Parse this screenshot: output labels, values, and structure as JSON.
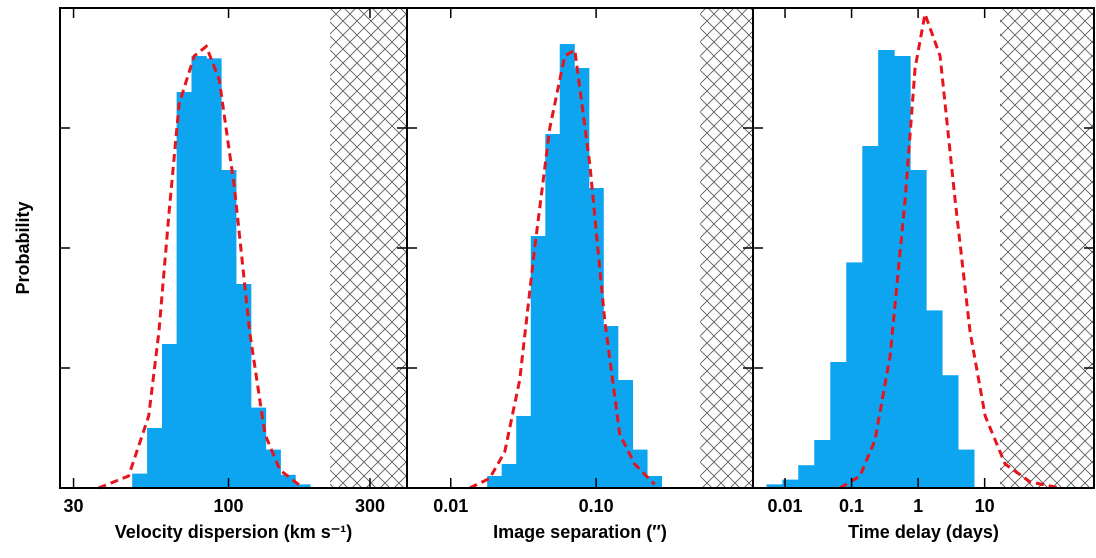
{
  "chart_data": [
    {
      "type": "histogram",
      "xlog": true,
      "ylabel": "Probability",
      "xlabel": "Velocity dispersion (km s⁻¹)",
      "xlim": [
        27,
        400
      ],
      "xticks": [
        30,
        100,
        300
      ],
      "ylim": [
        0,
        4
      ],
      "yticks": [
        0,
        1,
        2,
        3,
        4
      ],
      "color": "#0ea5f0",
      "bins": [
        47.3,
        53.1,
        59.6,
        66.8,
        75.0,
        84.1,
        94.4,
        105.9,
        118.9,
        133.4,
        149.6,
        167.9,
        188.4
      ],
      "values": [
        0.12,
        0.5,
        1.2,
        3.3,
        3.6,
        3.58,
        2.65,
        1.7,
        0.67,
        0.32,
        0.11,
        0.03
      ],
      "curve": {
        "color": "#e8141c",
        "x": [
          36.4,
          46.0,
          53.8,
          58.2,
          63.0,
          68.1,
          76.6,
          84.1,
          93.1,
          104.7,
          117.9,
          132.6,
          149.0,
          174.4
        ],
        "values": [
          0,
          0.1,
          0.6,
          1.3,
          2.3,
          3.2,
          3.6,
          3.68,
          3.4,
          2.5,
          1.3,
          0.45,
          0.15,
          0.02
        ]
      },
      "shaded_xrange": [
        220,
        400
      ]
    },
    {
      "type": "histogram",
      "xlog": true,
      "xlabel": "Image separation (″)",
      "xlim": [
        0.005,
        1.2
      ],
      "xticks": [
        0.01,
        {
          "value": 0.1,
          "label": "0.10"
        }
      ],
      "ylim": [
        0,
        4
      ],
      "yticks": [
        0,
        1,
        2,
        3,
        4
      ],
      "color": "#0ea5f0",
      "bins": [
        0.0178,
        0.0224,
        0.0282,
        0.0355,
        0.0447,
        0.0562,
        0.0708,
        0.0891,
        0.112,
        0.141,
        0.178,
        0.224,
        0.282
      ],
      "values": [
        0.1,
        0.2,
        0.6,
        2.1,
        2.95,
        3.7,
        3.5,
        2.5,
        1.35,
        0.9,
        0.32,
        0.1
      ],
      "curve": {
        "color": "#e8141c",
        "x": [
          0.0135,
          0.0185,
          0.0235,
          0.0298,
          0.0378,
          0.048,
          0.0608,
          0.0713,
          0.0904,
          0.1146,
          0.1452,
          0.184,
          0.253
        ],
        "values": [
          0,
          0.08,
          0.3,
          0.9,
          2.0,
          3.0,
          3.6,
          3.65,
          2.7,
          1.4,
          0.45,
          0.2,
          0.03
        ]
      },
      "shaded_xrange": [
        0.52,
        1.2
      ]
    },
    {
      "type": "histogram",
      "xlog": true,
      "xlabel": "Time delay (days)",
      "xlim": [
        0.0033,
        440
      ],
      "xticks": [
        0.01,
        0.1,
        1,
        10
      ],
      "ylim": [
        0,
        4
      ],
      "yticks": [
        0,
        1,
        2,
        3,
        4
      ],
      "color": "#0ea5f0",
      "bins": [
        0.00525,
        0.00912,
        0.0158,
        0.0275,
        0.0479,
        0.0832,
        0.145,
        0.251,
        0.437,
        0.759,
        1.32,
        2.29,
        3.98,
        6.92
      ],
      "values": [
        0.03,
        0.07,
        0.19,
        0.4,
        1.05,
        1.88,
        2.85,
        3.65,
        3.6,
        2.65,
        1.48,
        0.94,
        0.32
      ],
      "curve": {
        "color": "#e8141c",
        "x": [
          0.0671,
          0.134,
          0.225,
          0.379,
          0.638,
          0.901,
          1.27,
          2.14,
          3.6,
          6.05,
          10.2,
          20.3,
          48.3,
          136
        ],
        "values": [
          0,
          0.1,
          0.4,
          1.1,
          2.4,
          3.5,
          3.95,
          3.6,
          2.4,
          1.3,
          0.6,
          0.2,
          0.05,
          0
        ]
      },
      "shaded_xrange": [
        17,
        440
      ]
    }
  ]
}
